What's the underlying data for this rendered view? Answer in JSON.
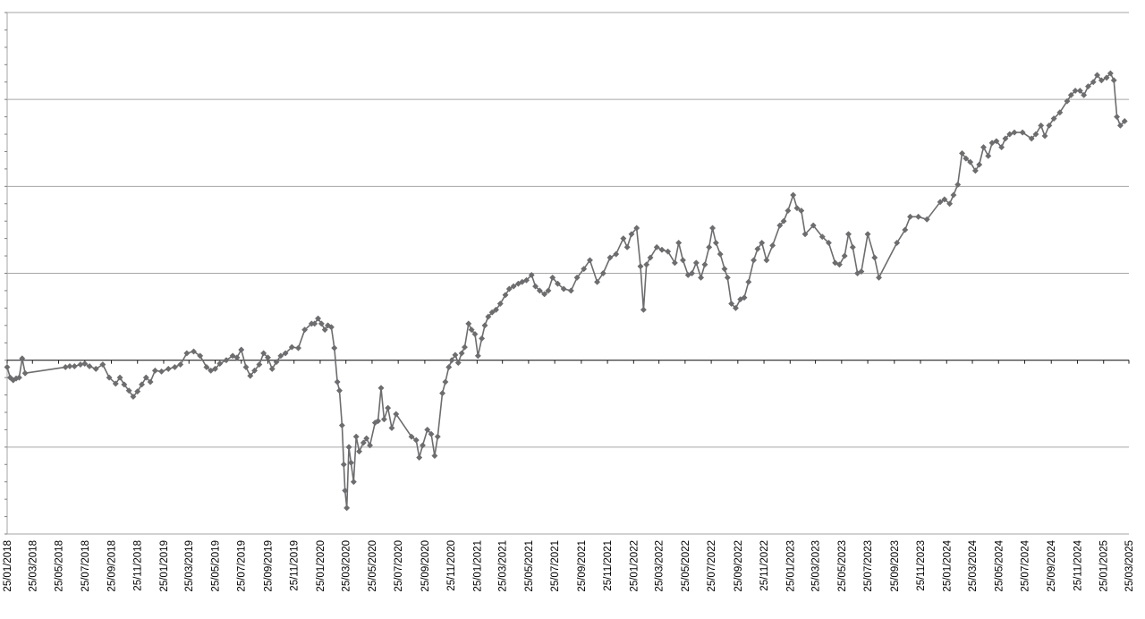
{
  "chart_data": {
    "type": "line",
    "title": "",
    "xlabel": "",
    "ylabel": "",
    "x_tick_labels": [
      "25/01/2018",
      "25/03/2018",
      "25/05/2018",
      "25/07/2018",
      "25/09/2018",
      "25/11/2018",
      "25/01/2019",
      "25/03/2019",
      "25/05/2019",
      "25/07/2019",
      "25/09/2019",
      "25/11/2019",
      "25/01/2020",
      "25/03/2020",
      "25/05/2020",
      "25/07/2020",
      "25/09/2020",
      "25/11/2020",
      "25/01/2021",
      "25/03/2021",
      "25/05/2021",
      "25/07/2021",
      "25/09/2021",
      "25/11/2021",
      "25/01/2022",
      "25/03/2022",
      "25/05/2022",
      "25/07/2022",
      "25/09/2022",
      "25/11/2022",
      "25/01/2023",
      "25/03/2023",
      "25/05/2023",
      "25/07/2023",
      "25/09/2023",
      "25/11/2023",
      "25/01/2024",
      "25/03/2024",
      "25/05/2024",
      "25/07/2024",
      "25/09/2024",
      "25/11/2024",
      "25/01/2025",
      "25/03/2025"
    ],
    "y_tick_labels_shown": false,
    "ylim": [
      -2,
      4
    ],
    "y_units_note": "",
    "grid": true,
    "legend": "none",
    "series_color": "#6d6d6f",
    "series": [
      {
        "points": [
          [
            "2018-01-25",
            -0.08
          ],
          [
            "2018-02-01",
            -0.2
          ],
          [
            "2018-02-08",
            -0.23
          ],
          [
            "2018-02-15",
            -0.21
          ],
          [
            "2018-02-22",
            -0.2
          ],
          [
            "2018-03-01",
            0.02
          ],
          [
            "2018-03-08",
            -0.15
          ],
          [
            "2018-06-10",
            -0.08
          ],
          [
            "2018-06-20",
            -0.07
          ],
          [
            "2018-07-01",
            -0.07
          ],
          [
            "2018-07-15",
            -0.05
          ],
          [
            "2018-07-25",
            -0.04
          ],
          [
            "2018-08-05",
            -0.07
          ],
          [
            "2018-08-20",
            -0.1
          ],
          [
            "2018-09-05",
            -0.05
          ],
          [
            "2018-09-20",
            -0.2
          ],
          [
            "2018-10-05",
            -0.27
          ],
          [
            "2018-10-15",
            -0.2
          ],
          [
            "2018-10-25",
            -0.28
          ],
          [
            "2018-11-05",
            -0.35
          ],
          [
            "2018-11-15",
            -0.42
          ],
          [
            "2018-11-25",
            -0.36
          ],
          [
            "2018-12-05",
            -0.28
          ],
          [
            "2018-12-15",
            -0.2
          ],
          [
            "2018-12-25",
            -0.25
          ],
          [
            "2019-01-05",
            -0.12
          ],
          [
            "2019-01-20",
            -0.13
          ],
          [
            "2019-02-05",
            -0.1
          ],
          [
            "2019-02-20",
            -0.08
          ],
          [
            "2019-03-05",
            -0.05
          ],
          [
            "2019-03-20",
            0.08
          ],
          [
            "2019-04-05",
            0.1
          ],
          [
            "2019-04-20",
            0.05
          ],
          [
            "2019-05-05",
            -0.08
          ],
          [
            "2019-05-15",
            -0.12
          ],
          [
            "2019-05-25",
            -0.1
          ],
          [
            "2019-06-05",
            -0.04
          ],
          [
            "2019-06-20",
            0.0
          ],
          [
            "2019-07-05",
            0.05
          ],
          [
            "2019-07-15",
            0.03
          ],
          [
            "2019-07-25",
            0.12
          ],
          [
            "2019-08-05",
            -0.08
          ],
          [
            "2019-08-15",
            -0.18
          ],
          [
            "2019-08-25",
            -0.12
          ],
          [
            "2019-09-05",
            -0.05
          ],
          [
            "2019-09-15",
            0.08
          ],
          [
            "2019-09-25",
            0.03
          ],
          [
            "2019-10-05",
            -0.1
          ],
          [
            "2019-10-15",
            -0.02
          ],
          [
            "2019-10-25",
            0.05
          ],
          [
            "2019-11-05",
            0.08
          ],
          [
            "2019-11-20",
            0.15
          ],
          [
            "2019-12-05",
            0.14
          ],
          [
            "2019-12-20",
            0.35
          ],
          [
            "2020-01-05",
            0.42
          ],
          [
            "2020-01-12",
            0.42
          ],
          [
            "2020-01-20",
            0.48
          ],
          [
            "2020-01-28",
            0.42
          ],
          [
            "2020-02-05",
            0.35
          ],
          [
            "2020-02-12",
            0.4
          ],
          [
            "2020-02-20",
            0.38
          ],
          [
            "2020-02-27",
            0.14
          ],
          [
            "2020-03-05",
            -0.25
          ],
          [
            "2020-03-10",
            -0.35
          ],
          [
            "2020-03-16",
            -0.75
          ],
          [
            "2020-03-20",
            -1.2
          ],
          [
            "2020-03-23",
            -1.5
          ],
          [
            "2020-03-27",
            -1.7
          ],
          [
            "2020-04-01",
            -1.0
          ],
          [
            "2020-04-06",
            -1.18
          ],
          [
            "2020-04-12",
            -1.4
          ],
          [
            "2020-04-18",
            -0.88
          ],
          [
            "2020-04-25",
            -1.05
          ],
          [
            "2020-05-05",
            -0.95
          ],
          [
            "2020-05-12",
            -0.9
          ],
          [
            "2020-05-20",
            -0.98
          ],
          [
            "2020-06-01",
            -0.72
          ],
          [
            "2020-06-08",
            -0.7
          ],
          [
            "2020-06-15",
            -0.32
          ],
          [
            "2020-06-22",
            -0.68
          ],
          [
            "2020-07-01",
            -0.55
          ],
          [
            "2020-07-10",
            -0.78
          ],
          [
            "2020-07-20",
            -0.62
          ],
          [
            "2020-08-25",
            -0.88
          ],
          [
            "2020-09-05",
            -0.92
          ],
          [
            "2020-09-12",
            -1.12
          ],
          [
            "2020-09-20",
            -0.98
          ],
          [
            "2020-10-01",
            -0.8
          ],
          [
            "2020-10-10",
            -0.85
          ],
          [
            "2020-10-18",
            -1.1
          ],
          [
            "2020-10-25",
            -0.88
          ],
          [
            "2020-11-05",
            -0.38
          ],
          [
            "2020-11-12",
            -0.25
          ],
          [
            "2020-11-20",
            -0.08
          ],
          [
            "2020-11-27",
            0.0
          ],
          [
            "2020-12-05",
            0.06
          ],
          [
            "2020-12-12",
            -0.03
          ],
          [
            "2020-12-20",
            0.08
          ],
          [
            "2020-12-27",
            0.15
          ],
          [
            "2021-01-05",
            0.42
          ],
          [
            "2021-01-12",
            0.35
          ],
          [
            "2021-01-20",
            0.3
          ],
          [
            "2021-01-27",
            0.05
          ],
          [
            "2021-02-05",
            0.25
          ],
          [
            "2021-02-12",
            0.4
          ],
          [
            "2021-02-20",
            0.5
          ],
          [
            "2021-03-01",
            0.55
          ],
          [
            "2021-03-10",
            0.58
          ],
          [
            "2021-03-20",
            0.65
          ],
          [
            "2021-04-01",
            0.75
          ],
          [
            "2021-04-10",
            0.82
          ],
          [
            "2021-04-20",
            0.85
          ],
          [
            "2021-05-01",
            0.88
          ],
          [
            "2021-05-10",
            0.9
          ],
          [
            "2021-05-20",
            0.92
          ],
          [
            "2021-06-01",
            0.98
          ],
          [
            "2021-06-10",
            0.85
          ],
          [
            "2021-06-20",
            0.8
          ],
          [
            "2021-07-01",
            0.76
          ],
          [
            "2021-07-10",
            0.8
          ],
          [
            "2021-07-20",
            0.95
          ],
          [
            "2021-08-01",
            0.88
          ],
          [
            "2021-08-15",
            0.82
          ],
          [
            "2021-09-01",
            0.8
          ],
          [
            "2021-09-15",
            0.95
          ],
          [
            "2021-10-01",
            1.05
          ],
          [
            "2021-10-15",
            1.15
          ],
          [
            "2021-11-01",
            0.9
          ],
          [
            "2021-11-15",
            1.0
          ],
          [
            "2021-12-01",
            1.18
          ],
          [
            "2021-12-15",
            1.22
          ],
          [
            "2022-01-01",
            1.4
          ],
          [
            "2022-01-10",
            1.3
          ],
          [
            "2022-01-20",
            1.45
          ],
          [
            "2022-02-01",
            1.52
          ],
          [
            "2022-02-10",
            1.08
          ],
          [
            "2022-02-17",
            0.58
          ],
          [
            "2022-02-24",
            1.1
          ],
          [
            "2022-03-05",
            1.18
          ],
          [
            "2022-03-20",
            1.3
          ],
          [
            "2022-04-01",
            1.27
          ],
          [
            "2022-04-15",
            1.25
          ],
          [
            "2022-05-01",
            1.12
          ],
          [
            "2022-05-10",
            1.35
          ],
          [
            "2022-05-20",
            1.15
          ],
          [
            "2022-06-01",
            0.98
          ],
          [
            "2022-06-10",
            1.0
          ],
          [
            "2022-06-20",
            1.12
          ],
          [
            "2022-07-01",
            0.95
          ],
          [
            "2022-07-10",
            1.1
          ],
          [
            "2022-07-20",
            1.3
          ],
          [
            "2022-07-28",
            1.52
          ],
          [
            "2022-08-05",
            1.35
          ],
          [
            "2022-08-15",
            1.22
          ],
          [
            "2022-08-25",
            1.05
          ],
          [
            "2022-09-01",
            0.95
          ],
          [
            "2022-09-10",
            0.65
          ],
          [
            "2022-09-20",
            0.6
          ],
          [
            "2022-10-01",
            0.7
          ],
          [
            "2022-10-10",
            0.72
          ],
          [
            "2022-10-20",
            0.9
          ],
          [
            "2022-11-01",
            1.15
          ],
          [
            "2022-11-10",
            1.28
          ],
          [
            "2022-11-20",
            1.35
          ],
          [
            "2022-12-01",
            1.15
          ],
          [
            "2022-12-15",
            1.32
          ],
          [
            "2023-01-01",
            1.55
          ],
          [
            "2023-01-10",
            1.6
          ],
          [
            "2023-01-20",
            1.72
          ],
          [
            "2023-02-01",
            1.9
          ],
          [
            "2023-02-10",
            1.75
          ],
          [
            "2023-02-20",
            1.72
          ],
          [
            "2023-03-01",
            1.45
          ],
          [
            "2023-03-20",
            1.55
          ],
          [
            "2023-04-10",
            1.42
          ],
          [
            "2023-04-25",
            1.35
          ],
          [
            "2023-05-10",
            1.12
          ],
          [
            "2023-05-20",
            1.1
          ],
          [
            "2023-06-01",
            1.2
          ],
          [
            "2023-06-10",
            1.45
          ],
          [
            "2023-06-20",
            1.3
          ],
          [
            "2023-07-01",
            1.0
          ],
          [
            "2023-07-10",
            1.02
          ],
          [
            "2023-07-25",
            1.45
          ],
          [
            "2023-08-10",
            1.18
          ],
          [
            "2023-08-20",
            0.95
          ],
          [
            "2023-10-01",
            1.35
          ],
          [
            "2023-10-20",
            1.5
          ],
          [
            "2023-11-01",
            1.65
          ],
          [
            "2023-11-20",
            1.65
          ],
          [
            "2023-12-10",
            1.62
          ],
          [
            "2024-01-10",
            1.82
          ],
          [
            "2024-01-20",
            1.85
          ],
          [
            "2024-02-01",
            1.8
          ],
          [
            "2024-02-10",
            1.9
          ],
          [
            "2024-02-20",
            2.02
          ],
          [
            "2024-03-01",
            2.38
          ],
          [
            "2024-03-10",
            2.32
          ],
          [
            "2024-03-20",
            2.28
          ],
          [
            "2024-04-01",
            2.18
          ],
          [
            "2024-04-10",
            2.25
          ],
          [
            "2024-04-20",
            2.45
          ],
          [
            "2024-05-01",
            2.35
          ],
          [
            "2024-05-10",
            2.5
          ],
          [
            "2024-05-20",
            2.52
          ],
          [
            "2024-06-01",
            2.45
          ],
          [
            "2024-06-10",
            2.55
          ],
          [
            "2024-06-20",
            2.6
          ],
          [
            "2024-07-01",
            2.62
          ],
          [
            "2024-07-20",
            2.62
          ],
          [
            "2024-08-10",
            2.55
          ],
          [
            "2024-08-20",
            2.6
          ],
          [
            "2024-09-01",
            2.7
          ],
          [
            "2024-09-10",
            2.58
          ],
          [
            "2024-09-20",
            2.7
          ],
          [
            "2024-10-01",
            2.78
          ],
          [
            "2024-10-15",
            2.85
          ],
          [
            "2024-11-01",
            2.98
          ],
          [
            "2024-11-10",
            3.05
          ],
          [
            "2024-11-20",
            3.1
          ],
          [
            "2024-12-01",
            3.1
          ],
          [
            "2024-12-10",
            3.05
          ],
          [
            "2024-12-20",
            3.15
          ],
          [
            "2025-01-01",
            3.2
          ],
          [
            "2025-01-10",
            3.28
          ],
          [
            "2025-01-20",
            3.22
          ],
          [
            "2025-02-01",
            3.25
          ],
          [
            "2025-02-10",
            3.3
          ],
          [
            "2025-02-18",
            3.22
          ],
          [
            "2025-02-25",
            2.8
          ],
          [
            "2025-03-05",
            2.7
          ],
          [
            "2025-03-15",
            2.75
          ]
        ]
      }
    ]
  }
}
